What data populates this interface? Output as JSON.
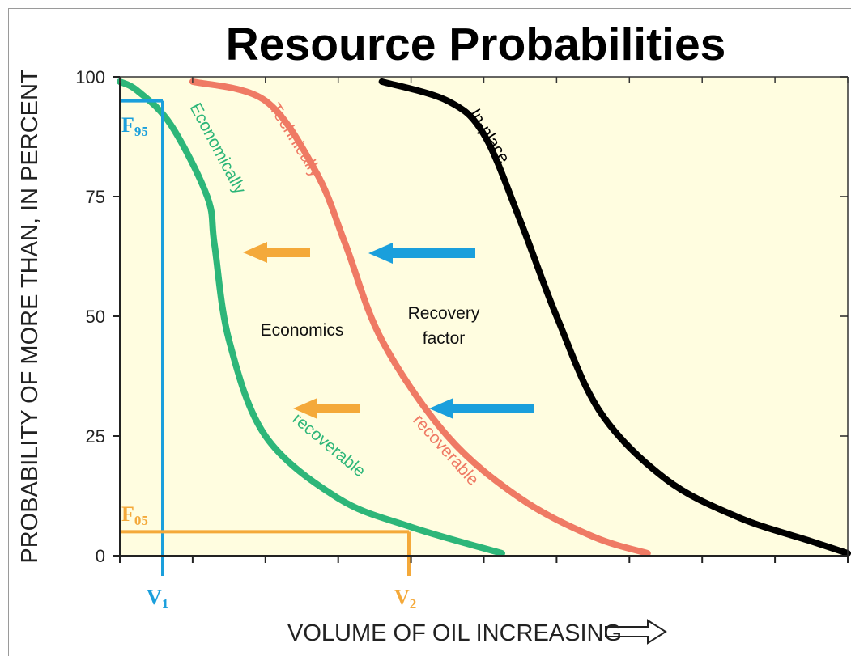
{
  "chart_data": {
    "type": "line",
    "title": "Resource Probabilities",
    "xlabel": "VOLUME OF OIL INCREASING",
    "ylabel": "PROBABILITY OF MORE THAN, IN PERCENT",
    "ylim": [
      0,
      100
    ],
    "y_ticks": [
      "0",
      "25",
      "50",
      "75",
      "100"
    ],
    "x_ticks_labeled": false,
    "background": "#fffde0",
    "series": [
      {
        "name_lines": [
          "Economically",
          "recoverable"
        ],
        "color": "#2db679",
        "x": [
          0.0,
          0.25,
          0.7,
          1.2,
          1.3,
          1.5,
          2.0,
          3.0,
          4.0,
          5.25
        ],
        "values": [
          99,
          97,
          90,
          75,
          65,
          45,
          25,
          12,
          6,
          0.5
        ]
      },
      {
        "name_lines": [
          "Technically",
          "recoverable"
        ],
        "color": "#ef7a64",
        "x": [
          1.0,
          2.0,
          2.7,
          3.1,
          3.6,
          4.5,
          5.5,
          6.5,
          7.25
        ],
        "values": [
          99,
          95,
          80,
          65,
          45,
          25,
          12,
          4,
          0.5
        ]
      },
      {
        "name_lines": [
          "In-place"
        ],
        "color": "#000000",
        "x": [
          3.6,
          4.5,
          5.0,
          5.5,
          6.0,
          6.6,
          7.5,
          8.5,
          9.5,
          10.0
        ],
        "values": [
          99,
          95,
          88,
          70,
          50,
          30,
          16,
          8,
          3,
          0.5
        ]
      }
    ],
    "annotations": {
      "f95": {
        "label": "F",
        "sub": "95",
        "color": "#1a9fdc",
        "y": 95
      },
      "f05": {
        "label": "F",
        "sub": "05",
        "color": "#f4a93a",
        "y": 5
      },
      "v1": {
        "label": "V",
        "sub": "1",
        "color": "#1a9fdc"
      },
      "v2": {
        "label": "V",
        "sub": "2",
        "color": "#f4a93a"
      },
      "economics": "Economics",
      "recovery_factor": [
        "Recovery",
        "factor"
      ],
      "arrow_orange_color": "#f4a93a",
      "arrow_blue_color": "#1a9fdc"
    }
  }
}
